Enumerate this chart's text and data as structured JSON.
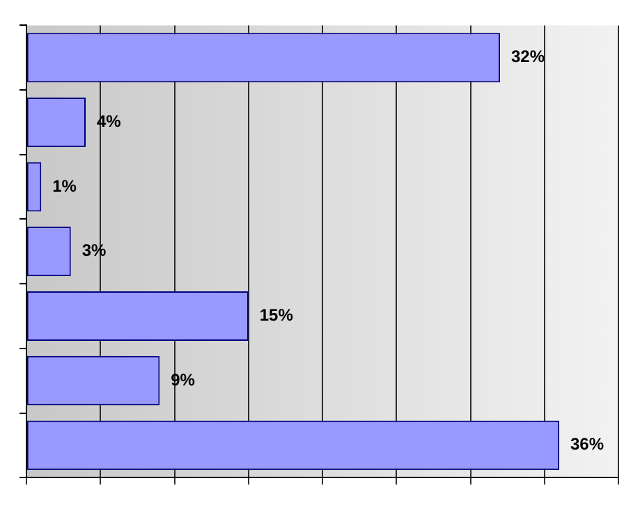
{
  "chart_data": {
    "type": "bar",
    "orientation": "horizontal",
    "categories": [
      null,
      null,
      null,
      null,
      null,
      null,
      null
    ],
    "values": [
      32,
      4,
      1,
      3,
      15,
      9,
      36
    ],
    "value_labels": [
      "32%",
      "4%",
      "1%",
      "3%",
      "15%",
      "9%",
      "36%"
    ],
    "color": "#9999ff",
    "xlim": [
      0,
      40
    ],
    "xticks": [
      {
        "value": 0,
        "label": null
      },
      {
        "value": 5,
        "label": null
      },
      {
        "value": 10,
        "label": null
      },
      {
        "value": 15,
        "label": null
      },
      {
        "value": 20,
        "label": null
      },
      {
        "value": 25,
        "label": null
      },
      {
        "value": 30,
        "label": null
      },
      {
        "value": 35,
        "label": null
      },
      {
        "value": 40,
        "label": null
      }
    ],
    "grid": "x",
    "legend": false
  }
}
